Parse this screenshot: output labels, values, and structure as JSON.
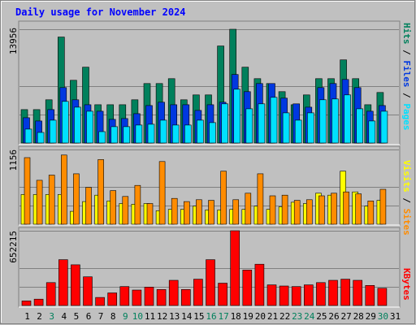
{
  "chart_data": [
    {
      "type": "bar",
      "title": "Daily usage for November 2024",
      "ymax_label": "13956",
      "ylim": [
        0,
        13956
      ],
      "categories": [
        "1",
        "2",
        "3",
        "4",
        "5",
        "6",
        "7",
        "8",
        "9",
        "10",
        "11",
        "12",
        "13",
        "14",
        "15",
        "16",
        "17",
        "18",
        "19",
        "20",
        "21",
        "22",
        "23",
        "24",
        "25",
        "26",
        "27",
        "28",
        "29",
        "30",
        "31"
      ],
      "weekend_days": [
        "3",
        "9",
        "10",
        "16",
        "17",
        "23",
        "24",
        "30"
      ],
      "weekend_color": "#00805c",
      "right_axis_label": {
        "hits": "Hits",
        "sep1": " / ",
        "files": "Files",
        "sep2": " / ",
        "pages": "Pages"
      },
      "series": [
        {
          "name": "Hits",
          "color": "#00805c",
          "values": [
            4100,
            4100,
            5300,
            13000,
            7700,
            9300,
            4700,
            4700,
            4700,
            5300,
            7300,
            7300,
            7900,
            5300,
            5900,
            5900,
            11900,
            13956,
            9300,
            7900,
            7300,
            6300,
            4700,
            5900,
            7900,
            7900,
            10200,
            7900,
            4700,
            6200,
            null
          ]
        },
        {
          "name": "Files",
          "color": "#0038e0",
          "values": [
            3100,
            2700,
            4100,
            6800,
            5300,
            4700,
            3900,
            2900,
            3000,
            3600,
            4600,
            5000,
            4700,
            4700,
            4000,
            4700,
            5000,
            8400,
            6300,
            7300,
            7300,
            5500,
            4800,
            4400,
            6800,
            7300,
            7800,
            6800,
            3900,
            4600,
            null
          ]
        },
        {
          "name": "Pages",
          "color": "#00e0ff",
          "values": [
            1700,
            1300,
            2800,
            5100,
            4400,
            3900,
            1400,
            2000,
            2000,
            2200,
            2300,
            2800,
            2200,
            2200,
            2800,
            2500,
            4800,
            6600,
            4200,
            4800,
            5600,
            3700,
            2800,
            3700,
            5300,
            5400,
            5900,
            4200,
            2700,
            3900,
            null
          ]
        }
      ]
    },
    {
      "type": "bar",
      "ymax_label": "1156",
      "ylim": [
        0,
        1156
      ],
      "right_axis_label": {
        "sites": "Sites",
        "sep": " / ",
        "visits": "Visits"
      },
      "series": [
        {
          "name": "Visits",
          "color": "#ffff00",
          "values": [
            460,
            460,
            460,
            460,
            200,
            350,
            450,
            360,
            320,
            310,
            320,
            210,
            230,
            230,
            280,
            220,
            220,
            230,
            230,
            280,
            230,
            270,
            340,
            320,
            480,
            450,
            820,
            500,
            280,
            370,
            null
          ]
        },
        {
          "name": "Sites",
          "color": "#ff8c00",
          "values": [
            1030,
            680,
            760,
            1070,
            780,
            570,
            1000,
            520,
            430,
            600,
            320,
            970,
            400,
            350,
            380,
            370,
            820,
            380,
            480,
            780,
            440,
            450,
            370,
            380,
            440,
            480,
            500,
            470,
            360,
            540,
            null
          ]
        }
      ]
    },
    {
      "type": "bar",
      "ymax_label": "652215",
      "ylim": [
        0,
        652215
      ],
      "right_axis_label": {
        "kbytes": "KBytes"
      },
      "series": [
        {
          "name": "KBytes",
          "color": "#ff0000",
          "values": [
            40000,
            55000,
            200000,
            400000,
            355000,
            250000,
            70000,
            110000,
            165000,
            135000,
            160000,
            140000,
            220000,
            140000,
            230000,
            400000,
            195000,
            652215,
            310000,
            360000,
            180000,
            170000,
            165000,
            180000,
            200000,
            220000,
            230000,
            220000,
            175000,
            150000,
            null
          ]
        }
      ]
    }
  ],
  "colors": {
    "background": "#c0c0c0",
    "title": "#0000ff",
    "axis_text": "#000000",
    "gridline": "#808080",
    "bevel_light": "#ffffff",
    "bevel_dark": "#808080"
  }
}
